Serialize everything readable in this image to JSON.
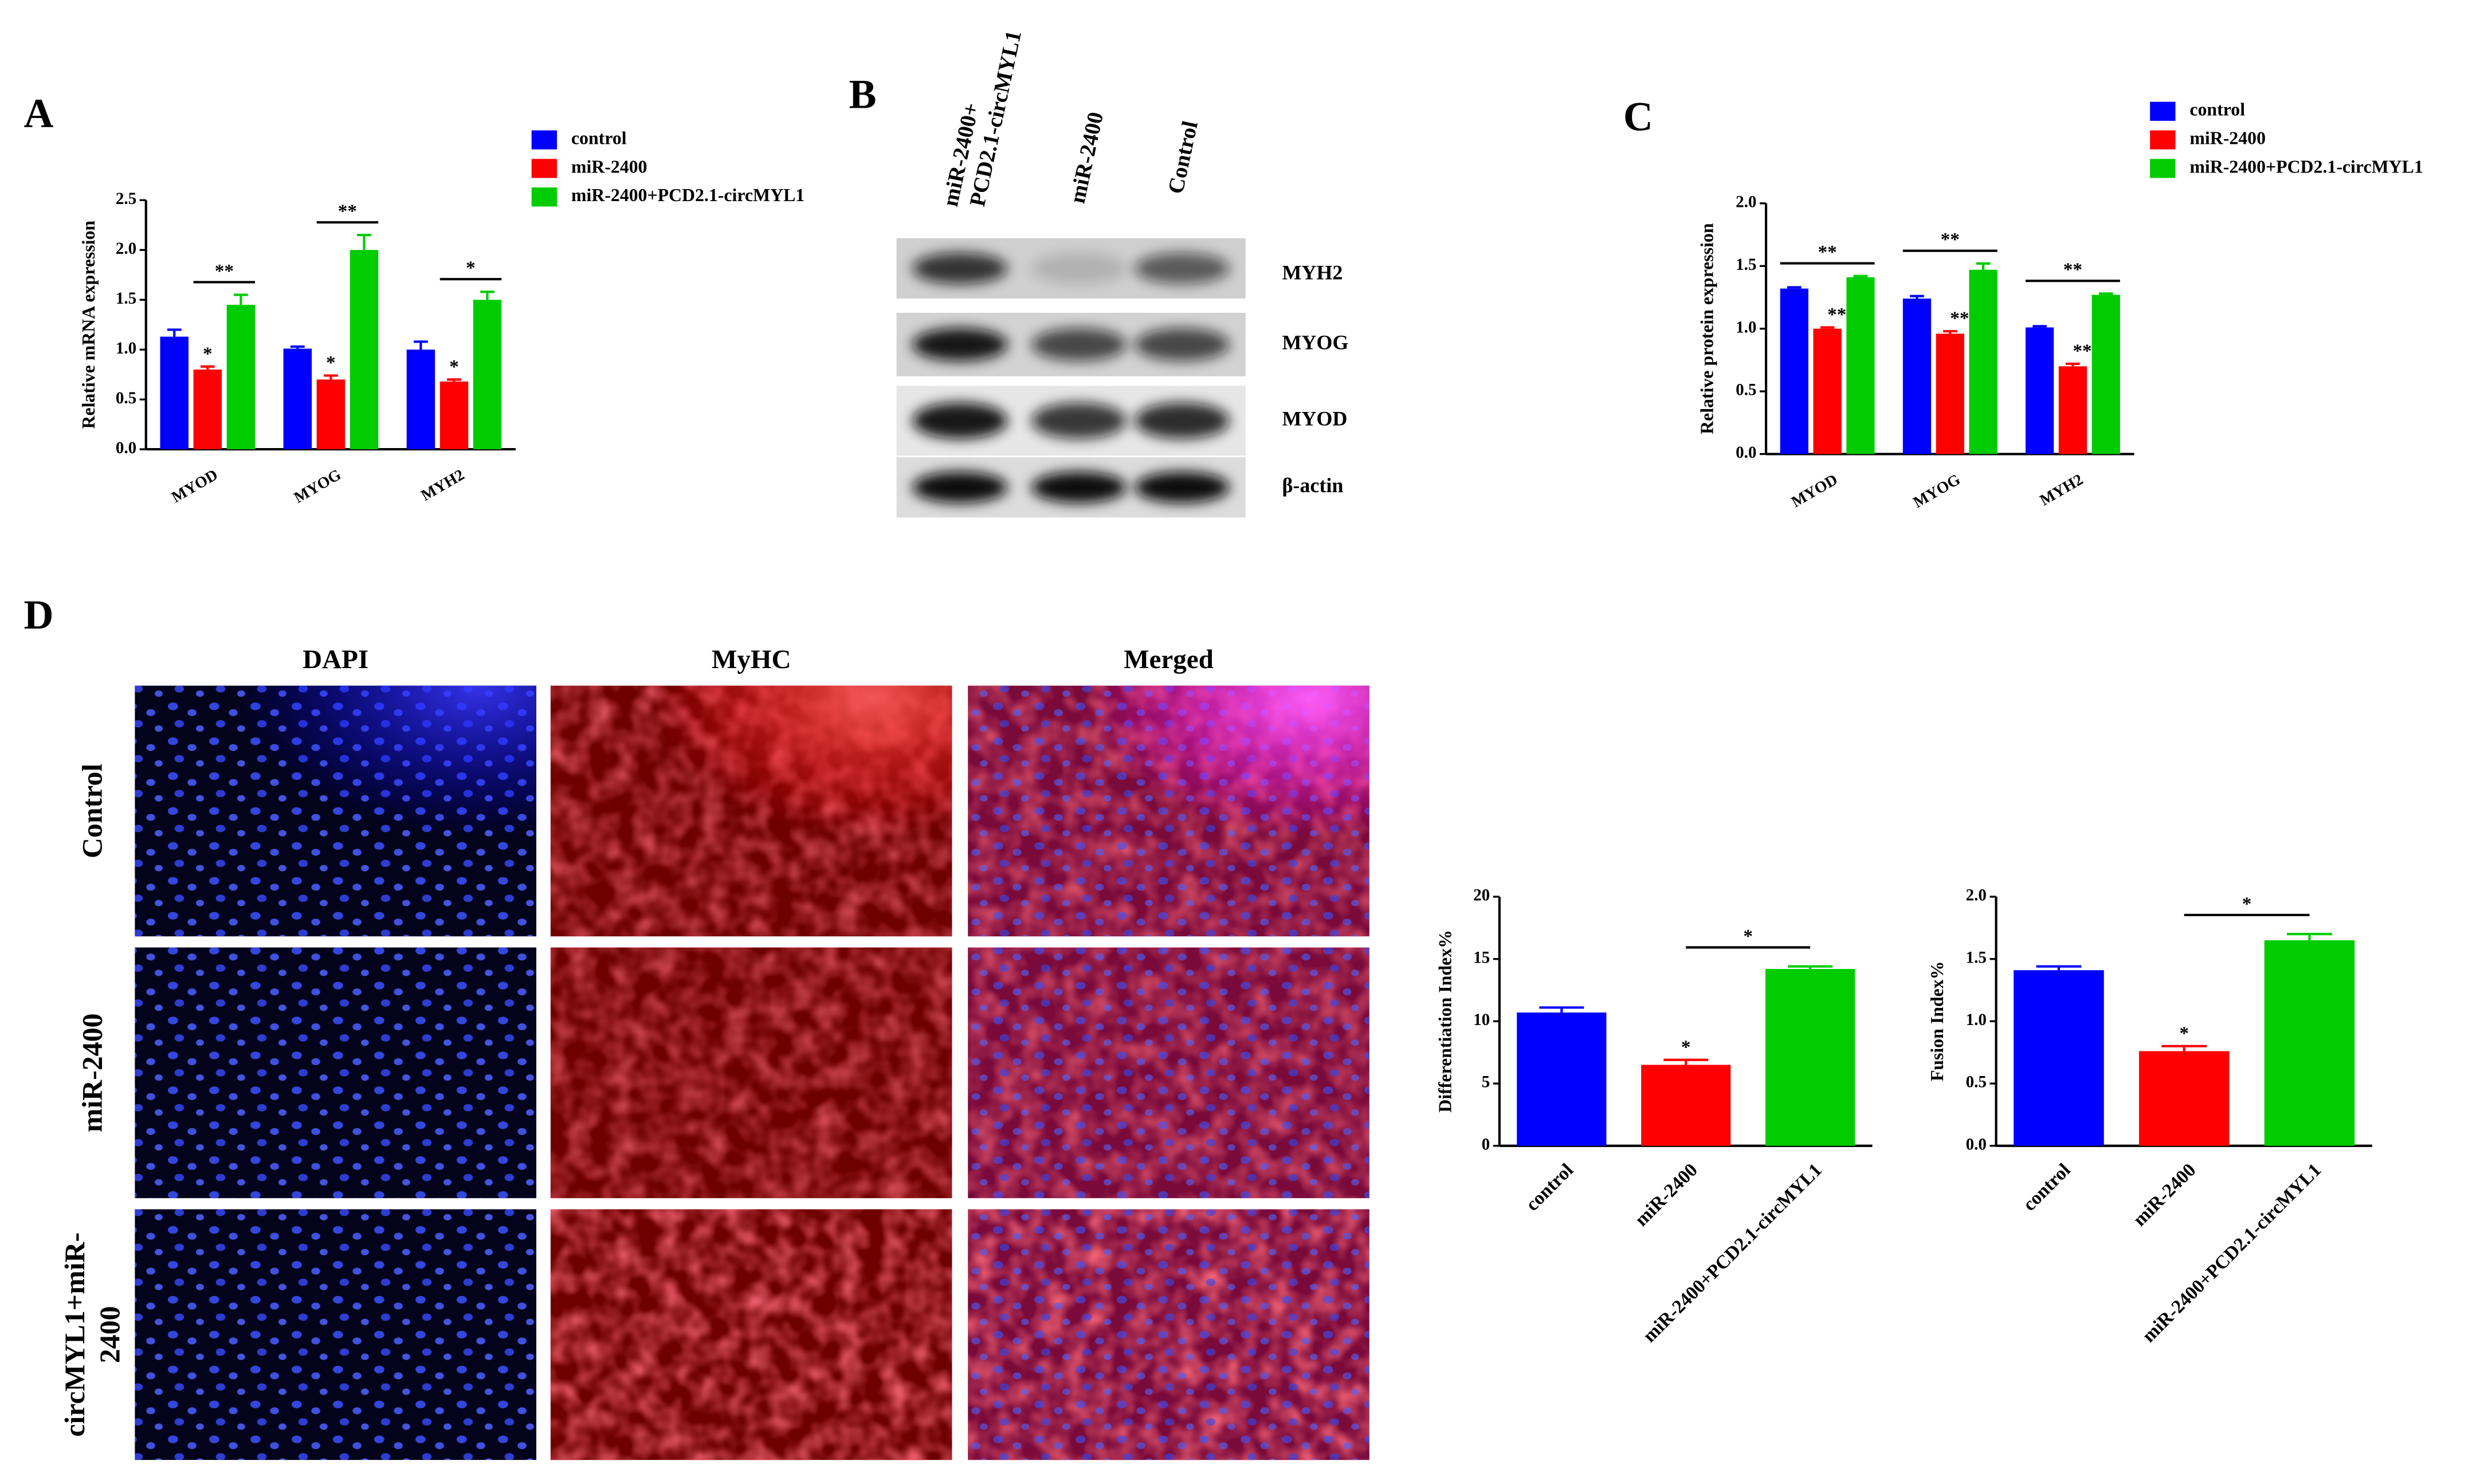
{
  "panel_labels": [
    "A",
    "B",
    "C",
    "D"
  ],
  "blot": {
    "lanes": [
      [
        "miR-2400+",
        "PCD2.1-circMYL1"
      ],
      [
        "miR-2400"
      ],
      [
        "Control"
      ]
    ],
    "proteins": [
      "MYH2",
      "MYOG",
      "MYOD",
      "β-actin"
    ]
  },
  "micrographs": {
    "columns": [
      "DAPI",
      "MyHC",
      "Merged"
    ],
    "rows": [
      [
        "Control"
      ],
      [
        "miR-2400"
      ],
      [
        "circMYL1+miR-",
        "2400"
      ]
    ]
  },
  "chart_data": [
    {
      "type": "bar",
      "ylabel": "Relative mRNA expression",
      "categories": [
        "MYOD",
        "MYOG",
        "MYH2"
      ],
      "series": [
        {
          "name": "control",
          "color": "#0000ff",
          "values": [
            1.13,
            1.01,
            1.0
          ],
          "errors": [
            0.07,
            0.02,
            0.08
          ]
        },
        {
          "name": "miR-2400",
          "color": "#ff0000",
          "values": [
            0.8,
            0.7,
            0.68
          ],
          "errors": [
            0.03,
            0.04,
            0.02
          ],
          "sig_labels": [
            "*",
            "*",
            "*"
          ]
        },
        {
          "name": "miR-2400+PCD2.1-circMYL1",
          "color": "#00cc00",
          "values": [
            1.45,
            2.0,
            1.5
          ],
          "errors": [
            0.1,
            0.15,
            0.08
          ]
        }
      ],
      "comparison_labels": [
        "**",
        "**",
        "*"
      ],
      "ylim": [
        0,
        2.5
      ],
      "yticks": [
        {
          "value": 0,
          "label": "0.0"
        },
        0.5,
        {
          "value": 1,
          "label": "1.0"
        },
        1.5,
        {
          "value": 2,
          "label": "2.0"
        },
        2.5
      ]
    },
    {
      "type": "bar",
      "ylabel": "Relative protein expression",
      "categories": [
        "MYOD",
        "MYOG",
        "MYH2"
      ],
      "series": [
        {
          "name": "control",
          "color": "#0000ff",
          "values": [
            1.32,
            1.24,
            1.01
          ],
          "errors": [
            0.01,
            0.02,
            0.01
          ]
        },
        {
          "name": "miR-2400",
          "color": "#ff0000",
          "values": [
            1.0,
            0.96,
            0.7
          ],
          "errors": [
            0.01,
            0.02,
            0.02
          ],
          "sig_labels": [
            "**",
            "**",
            "**"
          ]
        },
        {
          "name": "miR-2400+PCD2.1-circMYL1",
          "color": "#00cc00",
          "values": [
            1.41,
            1.47,
            1.27
          ],
          "errors": [
            0.01,
            0.05,
            0.01
          ]
        }
      ],
      "comparison_labels": [
        "**",
        "**",
        "**"
      ],
      "ylim": [
        0,
        2.0
      ],
      "yticks": [
        {
          "value": 0,
          "label": "0.0"
        },
        0.5,
        {
          "value": 1,
          "label": "1.0"
        },
        1.5,
        {
          "value": 2,
          "label": "2.0"
        }
      ]
    },
    {
      "type": "bar",
      "ylabel": "Differentiation Index%",
      "categories": [
        "control",
        "miR-2400",
        "miR-2400+PCD2.1-circMYL1"
      ],
      "values": [
        10.7,
        6.5,
        14.2
      ],
      "errors": [
        0.4,
        0.4,
        0.2
      ],
      "colors": [
        "#0000ff",
        "#ff0000",
        "#00cc00"
      ],
      "sig_labels": [
        null,
        "*",
        null
      ],
      "comparison_labels": [
        "*"
      ],
      "ylim": [
        0,
        20
      ],
      "yticks": [
        0,
        5,
        10,
        15,
        20
      ]
    },
    {
      "type": "bar",
      "ylabel": "Fusion Index%",
      "categories": [
        "control",
        "miR-2400",
        "miR-2400+PCD2.1-circMYL1"
      ],
      "values": [
        1.41,
        0.76,
        1.65
      ],
      "errors": [
        0.03,
        0.04,
        0.05
      ],
      "colors": [
        "#0000ff",
        "#ff0000",
        "#00cc00"
      ],
      "sig_labels": [
        null,
        "*",
        null
      ],
      "comparison_labels": [
        "*"
      ],
      "ylim": [
        0,
        2.0
      ],
      "yticks": [
        {
          "value": 0,
          "label": "0.0"
        },
        0.5,
        {
          "value": 1,
          "label": "1.0"
        },
        1.5,
        {
          "value": 2,
          "label": "2.0"
        }
      ]
    }
  ]
}
